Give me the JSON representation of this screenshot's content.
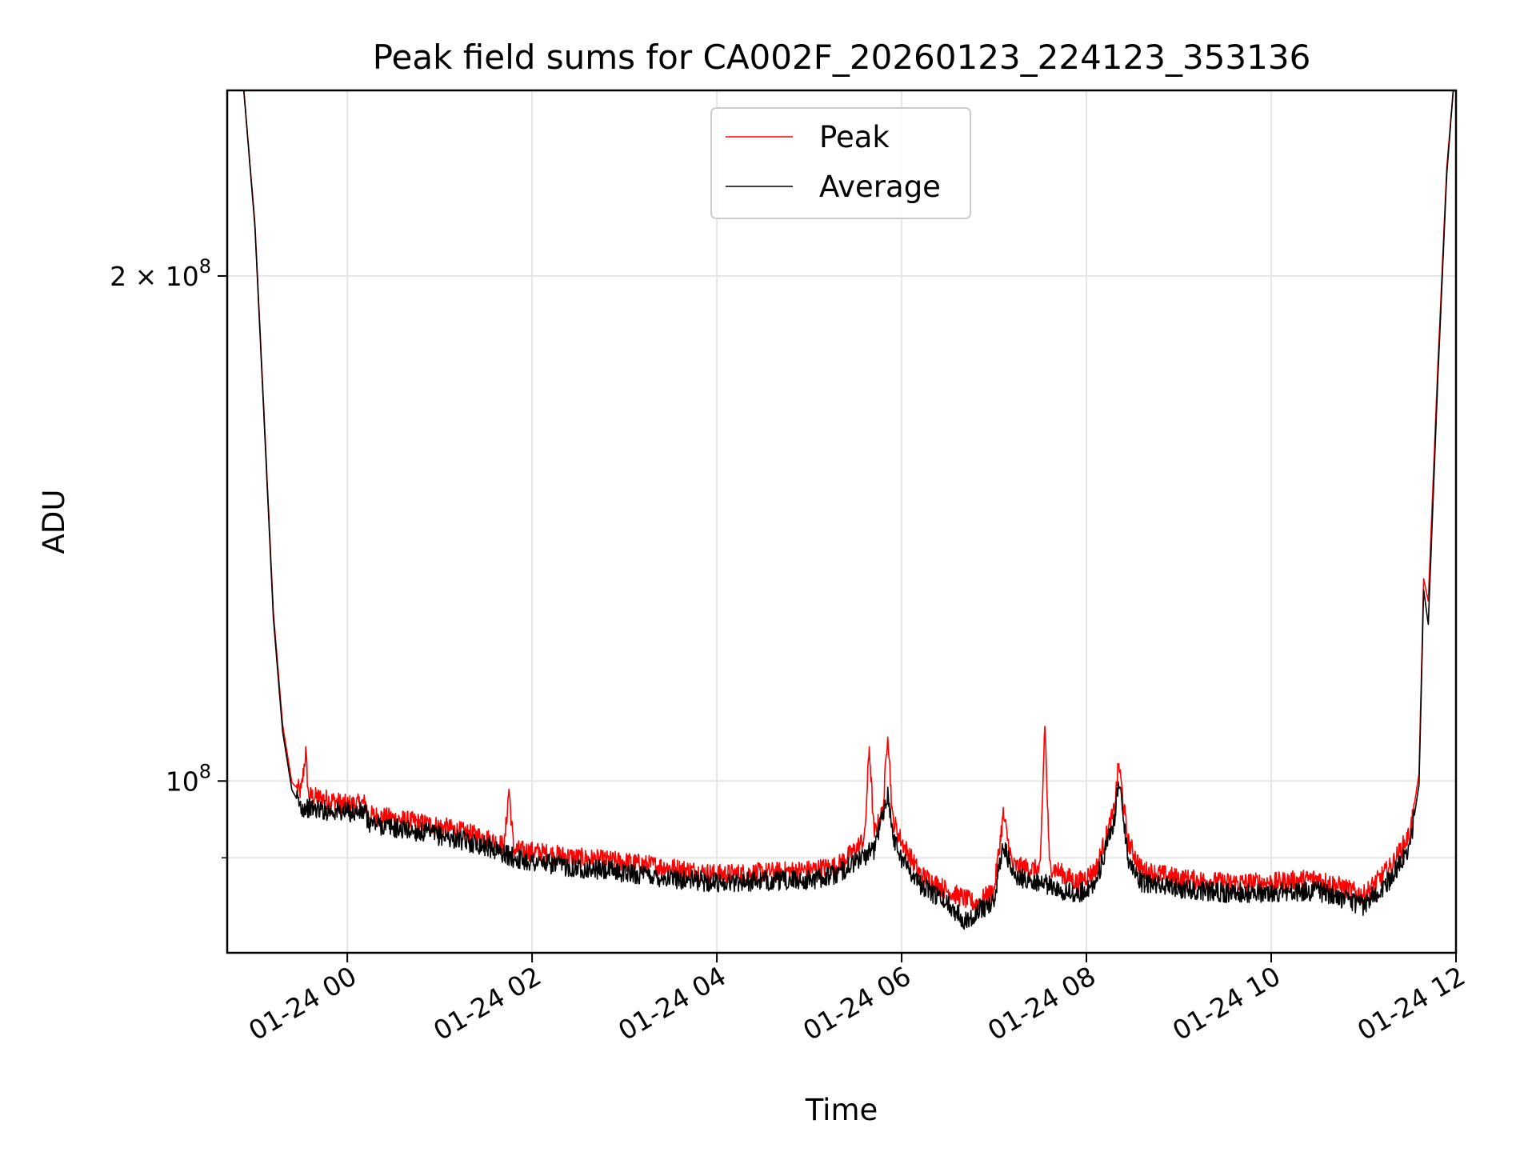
{
  "chart_data": {
    "type": "line",
    "title": "Peak field sums for CA002F_20260123_224123_353136",
    "xlabel": "Time",
    "ylabel": "ADU",
    "yscale": "log",
    "ylim": [
      79000000,
      258000000
    ],
    "xlim_hours": [
      -1.3,
      12.0
    ],
    "grid": true,
    "legend_position": "upper-center",
    "x_ticks": [
      {
        "hours": 0,
        "label": "01-24 00"
      },
      {
        "hours": 2,
        "label": "01-24 02"
      },
      {
        "hours": 4,
        "label": "01-24 04"
      },
      {
        "hours": 6,
        "label": "01-24 06"
      },
      {
        "hours": 8,
        "label": "01-24 08"
      },
      {
        "hours": 10,
        "label": "01-24 10"
      },
      {
        "hours": 12,
        "label": "01-24 12"
      }
    ],
    "y_major_ticks": [
      {
        "value": 100000000,
        "base": "10",
        "exp": "8",
        "coef": ""
      },
      {
        "value": 200000000,
        "base": "10",
        "exp": "8",
        "coef": "2 × "
      }
    ],
    "y_minor_ticks": [
      90000000
    ],
    "series": [
      {
        "name": "Peak",
        "color": "#ff0000",
        "points": [
          [
            -1.25,
            258000000
          ],
          [
            -1.12,
            258000000
          ],
          [
            -1.0,
            215000000
          ],
          [
            -0.9,
            165000000
          ],
          [
            -0.8,
            126000000
          ],
          [
            -0.7,
            108000000
          ],
          [
            -0.6,
            99800000
          ],
          [
            -0.5,
            98500000
          ],
          [
            -0.45,
            104000000
          ],
          [
            -0.42,
            98000000
          ],
          [
            -0.2,
            97500000
          ],
          [
            0.0,
            96800000
          ],
          [
            0.2,
            97000000
          ],
          [
            0.22,
            95500000
          ],
          [
            0.5,
            95000000
          ],
          [
            1.0,
            94000000
          ],
          [
            1.5,
            92500000
          ],
          [
            1.7,
            91500000
          ],
          [
            1.75,
            99000000
          ],
          [
            1.8,
            91000000
          ],
          [
            2.0,
            90800000
          ],
          [
            2.5,
            90000000
          ],
          [
            3.0,
            89500000
          ],
          [
            3.5,
            88800000
          ],
          [
            4.0,
            88000000
          ],
          [
            4.5,
            88200000
          ],
          [
            5.0,
            88500000
          ],
          [
            5.3,
            89000000
          ],
          [
            5.5,
            91000000
          ],
          [
            5.6,
            92500000
          ],
          [
            5.65,
            105000000
          ],
          [
            5.7,
            93000000
          ],
          [
            5.8,
            96000000
          ],
          [
            5.85,
            107500000
          ],
          [
            5.9,
            95000000
          ],
          [
            6.0,
            92000000
          ],
          [
            6.2,
            88000000
          ],
          [
            6.5,
            86000000
          ],
          [
            6.8,
            84500000
          ],
          [
            7.0,
            86000000
          ],
          [
            7.1,
            95500000
          ],
          [
            7.2,
            89000000
          ],
          [
            7.5,
            88500000
          ],
          [
            7.55,
            108500000
          ],
          [
            7.6,
            89000000
          ],
          [
            7.9,
            87000000
          ],
          [
            8.1,
            88500000
          ],
          [
            8.3,
            96000000
          ],
          [
            8.35,
            102500000
          ],
          [
            8.45,
            92000000
          ],
          [
            8.6,
            88500000
          ],
          [
            9.0,
            87500000
          ],
          [
            9.5,
            87000000
          ],
          [
            10.0,
            87000000
          ],
          [
            10.5,
            87500000
          ],
          [
            11.0,
            85500000
          ],
          [
            11.3,
            89000000
          ],
          [
            11.5,
            93000000
          ],
          [
            11.6,
            101000000
          ],
          [
            11.65,
            132000000
          ],
          [
            11.7,
            128000000
          ],
          [
            11.8,
            175000000
          ],
          [
            11.9,
            232000000
          ],
          [
            11.97,
            258000000
          ]
        ]
      },
      {
        "name": "Average",
        "color": "#000000",
        "points": [
          [
            -1.25,
            258000000
          ],
          [
            -1.12,
            258000000
          ],
          [
            -1.0,
            214000000
          ],
          [
            -0.9,
            164000000
          ],
          [
            -0.8,
            125000000
          ],
          [
            -0.7,
            107000000
          ],
          [
            -0.6,
            98800000
          ],
          [
            -0.5,
            96500000
          ],
          [
            -0.2,
            96000000
          ],
          [
            0.0,
            95800000
          ],
          [
            0.2,
            95800000
          ],
          [
            0.22,
            94500000
          ],
          [
            0.5,
            93800000
          ],
          [
            1.0,
            92800000
          ],
          [
            1.5,
            91500000
          ],
          [
            1.8,
            90000000
          ],
          [
            2.0,
            89500000
          ],
          [
            2.5,
            88800000
          ],
          [
            3.0,
            88200000
          ],
          [
            3.5,
            87500000
          ],
          [
            4.0,
            87000000
          ],
          [
            4.5,
            87200000
          ],
          [
            5.0,
            87300000
          ],
          [
            5.3,
            88000000
          ],
          [
            5.5,
            89500000
          ],
          [
            5.7,
            91000000
          ],
          [
            5.85,
            98500000
          ],
          [
            5.9,
            93000000
          ],
          [
            6.0,
            90000000
          ],
          [
            6.2,
            86800000
          ],
          [
            6.5,
            84500000
          ],
          [
            6.7,
            82500000
          ],
          [
            6.8,
            83500000
          ],
          [
            7.0,
            84800000
          ],
          [
            7.1,
            92000000
          ],
          [
            7.2,
            87800000
          ],
          [
            7.5,
            87000000
          ],
          [
            7.9,
            85500000
          ],
          [
            8.1,
            87000000
          ],
          [
            8.3,
            94500000
          ],
          [
            8.35,
            100500000
          ],
          [
            8.45,
            90000000
          ],
          [
            8.6,
            87000000
          ],
          [
            9.0,
            86300000
          ],
          [
            9.5,
            85800000
          ],
          [
            10.0,
            85800000
          ],
          [
            10.5,
            86000000
          ],
          [
            11.0,
            84300000
          ],
          [
            11.3,
            87500000
          ],
          [
            11.5,
            91500000
          ],
          [
            11.6,
            99500000
          ],
          [
            11.65,
            130000000
          ],
          [
            11.7,
            124000000
          ],
          [
            11.8,
            172000000
          ],
          [
            11.9,
            230000000
          ],
          [
            11.97,
            258000000
          ]
        ]
      }
    ]
  }
}
